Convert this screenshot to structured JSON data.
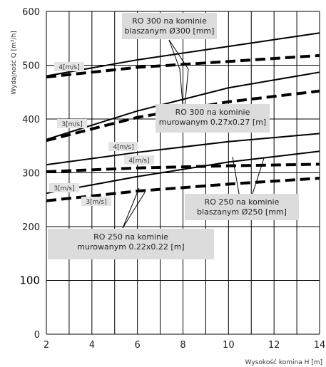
{
  "chart_data": {
    "type": "line",
    "title": "",
    "xlabel": "Wysokość komina H [m]",
    "ylabel": "Wydajność Q [m³/h]",
    "xlim": [
      2,
      14
    ],
    "ylim": [
      0,
      600
    ],
    "x_ticks": [
      "2",
      "4",
      "6",
      "8",
      "10",
      "12",
      "14"
    ],
    "y_ticks": [
      "0",
      "100",
      "200",
      "300",
      "400",
      "500",
      "600"
    ],
    "x_grid_step": 1,
    "y_grid_values": [
      0,
      100,
      200,
      300,
      400,
      500,
      600
    ],
    "grid": true,
    "series": [
      {
        "group": "RO 300 / blaszany",
        "style": "solid",
        "x": [
          2,
          6,
          10,
          14
        ],
        "y": [
          480,
          510,
          535,
          560
        ]
      },
      {
        "group": "RO 300 / blaszany",
        "style": "dashed",
        "x": [
          2,
          6,
          10,
          14
        ],
        "y": [
          478,
          496,
          507,
          518
        ]
      },
      {
        "group": "RO 300 / murowany",
        "style": "solid",
        "x": [
          2,
          6,
          10,
          14
        ],
        "y": [
          362,
          415,
          458,
          487
        ]
      },
      {
        "group": "RO 300 / murowany",
        "style": "dashed",
        "x": [
          2,
          6,
          10,
          14
        ],
        "y": [
          360,
          403,
          432,
          452
        ]
      },
      {
        "group": "RO 250 / blaszany",
        "style": "solid",
        "x": [
          2,
          6,
          10,
          14
        ],
        "y": [
          315,
          338,
          358,
          373
        ]
      },
      {
        "group": "RO 250 / blaszany",
        "style": "dashed",
        "x": [
          2,
          6,
          10,
          14
        ],
        "y": [
          302,
          309,
          313,
          316
        ]
      },
      {
        "group": "RO 250 / murowany",
        "style": "solid",
        "x": [
          2,
          6,
          10,
          14
        ],
        "y": [
          262,
          293,
          320,
          340
        ]
      },
      {
        "group": "RO 250 / murowany",
        "style": "dashed",
        "x": [
          2,
          6,
          10,
          14
        ],
        "y": [
          248,
          266,
          279,
          290
        ]
      }
    ],
    "annotations": {
      "ro300_blaszany": [
        "RO 300 na kominie",
        "blaszanym Ø300 [mm]"
      ],
      "ro300_murowany": [
        "RO 300 na kominie",
        "murowanym 0.27x0.27 [m]"
      ],
      "ro250_blaszany": [
        "RO 250 na kominie",
        "blaszanym Ø250 [mm]"
      ],
      "ro250_murowany": [
        "RO 250 na kominie",
        "murowanym 0.22x0.22 [m]"
      ],
      "speed_labels": [
        "4[m/s]",
        "3[m/s]",
        "4[m/s]",
        "4[m/s]",
        "3[m/s]",
        "3[m/s]"
      ]
    }
  }
}
